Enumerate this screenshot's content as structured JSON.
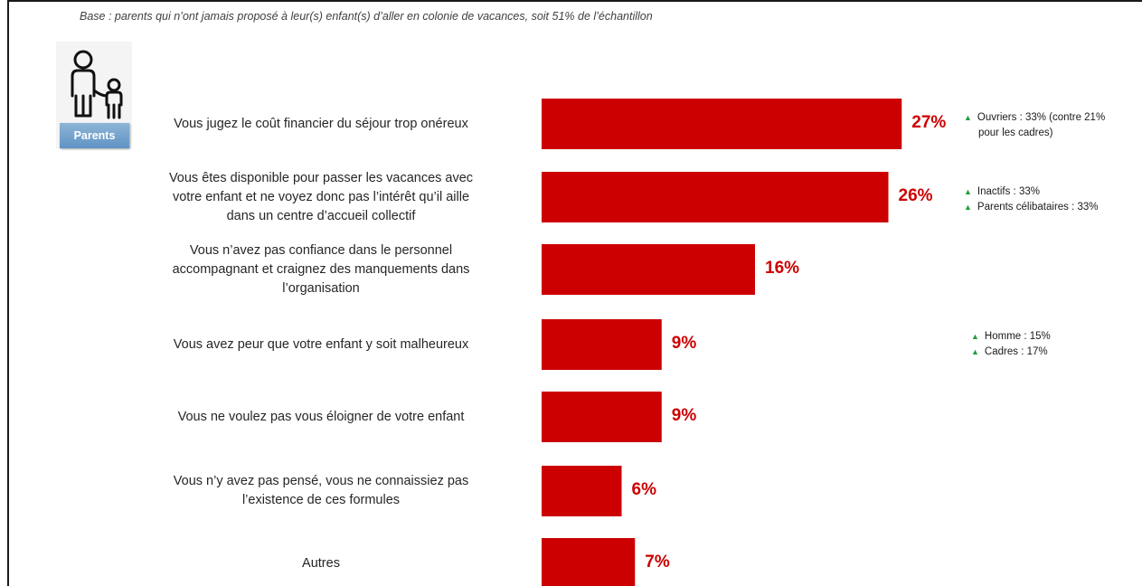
{
  "base_note": "Base : parents qui n’ont jamais proposé à leur(s) enfant(s) d’aller en colonie de vacances, soit 51% de l’échantillon",
  "badge_label": "Parents",
  "icon": "parent-and-child-icon",
  "colors": {
    "bar": "#cc0000",
    "value_text": "#cc0000",
    "up_arrow": "#1e9e3a",
    "badge": "#6f9fcc"
  },
  "chart_data": {
    "type": "bar",
    "orientation": "horizontal",
    "categories": [
      [
        "Vous jugez le coût financier du séjour trop onéreux"
      ],
      [
        "Vous êtes disponible pour passer les vacances avec",
        "votre enfant et ne voyez donc pas l’intérêt qu’il aille",
        "dans un centre d’accueil collectif"
      ],
      [
        "Vous n’avez pas confiance dans le personnel",
        "accompagnant et craignez des manquements dans",
        "l’organisation"
      ],
      [
        "Vous avez peur que votre enfant y soit malheureux"
      ],
      [
        "Vous ne voulez pas vous éloigner de votre enfant"
      ],
      [
        "Vous n’y avez pas pensé, vous ne connaissiez pas",
        "l’existence de ces formules"
      ],
      [
        "Autres"
      ]
    ],
    "values": [
      27,
      26,
      16,
      9,
      9,
      6,
      7
    ],
    "value_labels": [
      "27%",
      "26%",
      "16%",
      "9%",
      "9%",
      "6%",
      "7%"
    ],
    "notes": [
      [
        {
          "text": "Ouvriers : 33% (contre 21%",
          "cont": "pour les cadres)"
        }
      ],
      [
        {
          "text": "Inactifs : 33%"
        },
        {
          "text": "Parents célibataires : 33%"
        }
      ],
      [],
      [
        {
          "text": "Homme : 15%"
        },
        {
          "text": "Cadres : 17%"
        }
      ],
      [],
      [],
      []
    ]
  }
}
